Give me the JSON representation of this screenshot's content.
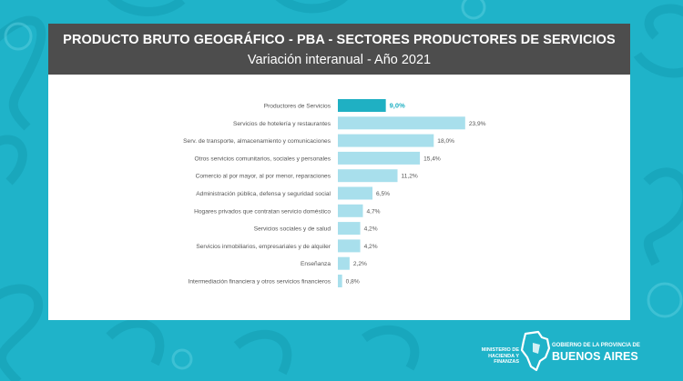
{
  "header": {
    "title": "PRODUCTO BRUTO GEOGRÁFICO - PBA - SECTORES PRODUCTORES DE SERVICIOS",
    "subtitle": "Variación interanual - Año 2021"
  },
  "colors": {
    "background": "#1fb3c9",
    "header_bg": "#4d4d4d",
    "highlight_bar": "#1fb0c3",
    "bar": "#a8dfec",
    "highlight_label": "#1fb0c3"
  },
  "chart_data": {
    "type": "bar",
    "orientation": "horizontal",
    "title": "PRODUCTO BRUTO GEOGRÁFICO - PBA - SECTORES PRODUCTORES DE SERVICIOS",
    "subtitle": "Variación interanual - Año 2021",
    "categories": [
      "Productores de Servicios",
      "Servicios de hotelería y restaurantes",
      "Serv. de transporte, almacenamiento y  comunicaciones",
      "Otros servicios comunitarios, sociales y personales",
      "Comercio al por mayor, al por menor, reparaciones",
      "Administración pública, defensa y seguridad social",
      "Hogares privados que contratan servicio doméstico",
      "Servicios sociales y de salud",
      "Servicios inmobiliarios, empresariales y de alquiler",
      "Enseñanza",
      "Intermediación financiera y otros servicios financieros"
    ],
    "values": [
      9.0,
      23.9,
      18.0,
      15.4,
      11.2,
      6.5,
      4.7,
      4.2,
      4.2,
      2.2,
      0.8
    ],
    "value_labels": [
      "9,0%",
      "23,9%",
      "18,0%",
      "15,4%",
      "11,2%",
      "6,5%",
      "4,7%",
      "4,2%",
      "4,2%",
      "2,2%",
      "0,8%"
    ],
    "highlighted_index": 0,
    "xlim": [
      0,
      24
    ],
    "grid": false,
    "legend": "none"
  },
  "footer": {
    "ministerio": "MINISTERIO DE HACIENDA Y FINANZAS",
    "gov_line1": "GOBIERNO DE LA PROVINCIA DE",
    "gov_line2": "BUENOS AIRES"
  }
}
